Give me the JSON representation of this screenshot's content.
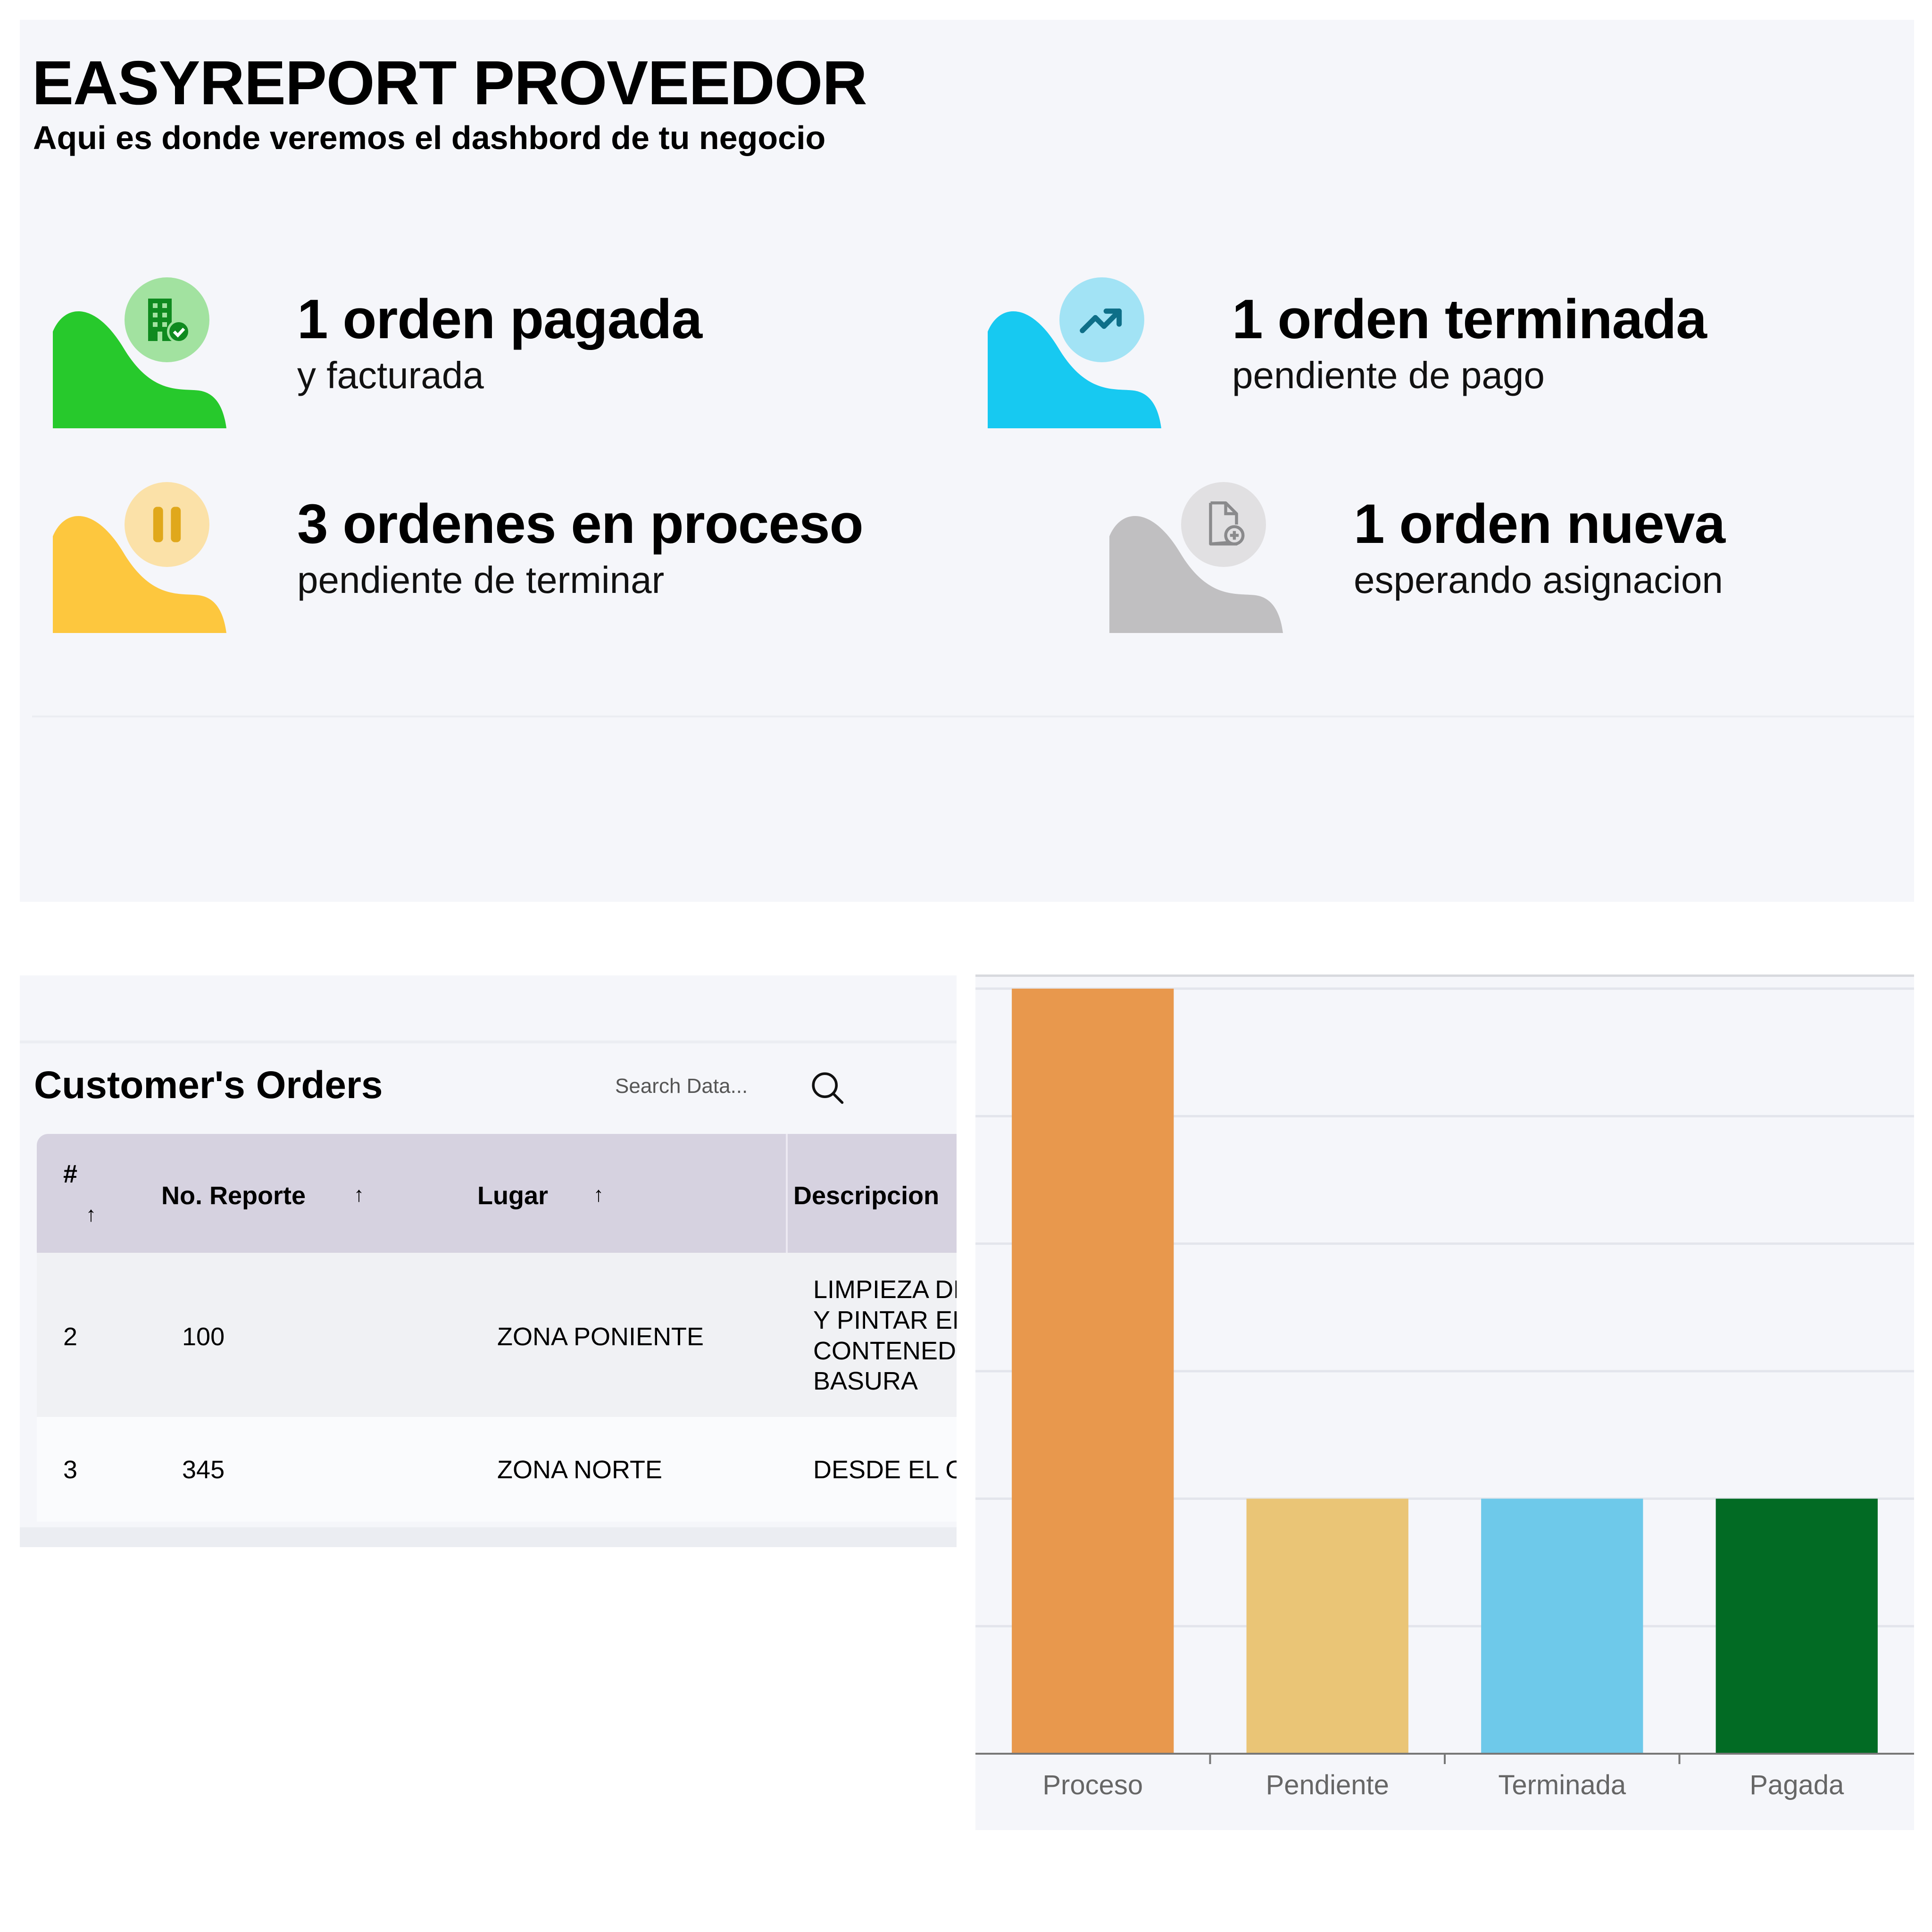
{
  "header": {
    "title": "EASYREPORT PROVEEDOR",
    "subtitle": "Aqui es donde veremos el dashbord de tu negocio"
  },
  "stats": [
    {
      "title": "1 orden pagada",
      "subtitle": "y facturada",
      "color": "#27c92c",
      "badge_color": "#a2e2a0",
      "icon": "building-check-icon"
    },
    {
      "title": "1 orden terminada",
      "subtitle": "pendiente de pago",
      "color": "#17c9f1",
      "badge_color": "#a2e3f5",
      "icon": "trending-up-icon"
    },
    {
      "title": "3 ordenes en proceso",
      "subtitle": "pendiente de terminar",
      "color": "#fdc73e",
      "badge_color": "#fbe1a8",
      "icon": "pause-icon"
    },
    {
      "title": "1 orden nueva",
      "subtitle": "esperando asignacion",
      "color": "#c0bfc1",
      "badge_color": "#e1e0e2",
      "icon": "file-add-icon"
    }
  ],
  "orders": {
    "title": "Customer's Orders",
    "search_placeholder": "Search Data...",
    "sort_glyph": "↑",
    "columns": [
      {
        "label": "#"
      },
      {
        "label": "No. Reporte"
      },
      {
        "label": "Lugar"
      },
      {
        "label": "Descripcion"
      }
    ],
    "rows": [
      {
        "id": "2",
        "reporte": "100",
        "lugar": "ZONA PONIENTE",
        "descripcion": [
          "LIMPIEZA DE I",
          "Y PINTAR EL",
          "CONTENEDOR",
          "BASURA"
        ]
      },
      {
        "id": "3",
        "reporte": "345",
        "lugar": "ZONA NORTE",
        "descripcion": [
          "DESDE EL CEL"
        ]
      }
    ]
  },
  "chart_data": {
    "type": "bar",
    "categories": [
      "Proceso",
      "Pendiente",
      "Terminada",
      "Pagada"
    ],
    "values": [
      3,
      1,
      1,
      1
    ],
    "colors": [
      "#e8984d",
      "#eac576",
      "#6ec9ea",
      "#026b24"
    ],
    "ylim": [
      0,
      3
    ],
    "grid": true,
    "title": "",
    "xlabel": "",
    "ylabel": ""
  }
}
